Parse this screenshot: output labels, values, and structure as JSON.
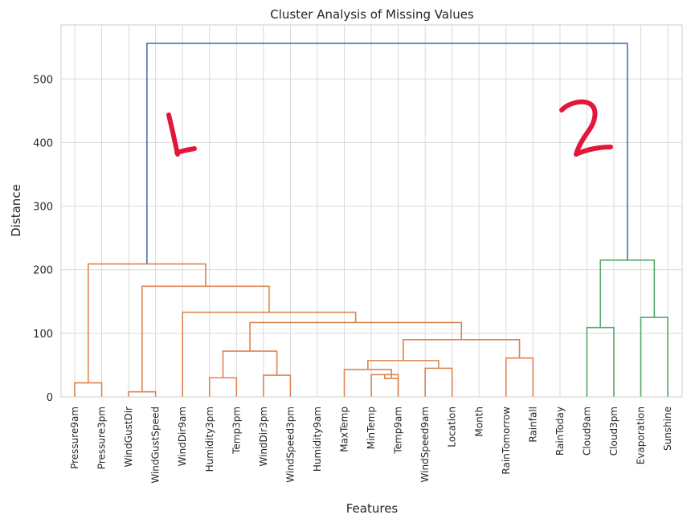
{
  "chart_data": {
    "type": "dendrogram",
    "title": "Cluster Analysis of Missing Values",
    "xlabel": "Features",
    "ylabel": "Distance",
    "ylim": [
      0,
      585
    ],
    "yticks": [
      0,
      100,
      200,
      300,
      400,
      500
    ],
    "grid": true,
    "leaves": [
      "Pressure9am",
      "Pressure3pm",
      "WindGustDir",
      "WindGustSpeed",
      "WindDir9am",
      "Humidity3pm",
      "Temp3pm",
      "WindDir3pm",
      "WindSpeed3pm",
      "Humidity9am",
      "MaxTemp",
      "MinTemp",
      "Temp9am",
      "WindSpeed9am",
      "Location",
      "Month",
      "RainTomorrow",
      "Rainfall",
      "RainToday",
      "Cloud9am",
      "Cloud3pm",
      "Evaporation",
      "Sunshine"
    ],
    "colors": {
      "cluster1": "#dd8452",
      "cluster2": "#55a868",
      "root": "#4c72b0"
    },
    "merges": [
      {
        "a": 0,
        "b": 1,
        "h": 22,
        "color": "cluster1"
      },
      {
        "a": 2,
        "b": 3,
        "h": 8,
        "color": "cluster1"
      },
      {
        "a": 5,
        "b": 6,
        "h": 30,
        "color": "cluster1"
      },
      {
        "a": 7,
        "b": 8,
        "h": 34,
        "color": "cluster1"
      },
      {
        "a": 11,
        "b": 12,
        "h": 35,
        "color": "cluster1"
      },
      {
        "a": 11.5,
        "b": 12,
        "h": 29,
        "color": "cluster1"
      },
      {
        "a": 10,
        "b": 11.75,
        "h": 43,
        "color": "cluster1"
      },
      {
        "a": 13,
        "b": 14,
        "h": 45,
        "color": "cluster1"
      },
      {
        "a": 10.875,
        "b": 13.5,
        "h": 57,
        "color": "cluster1"
      },
      {
        "a": 16,
        "b": 17,
        "h": 61,
        "color": "cluster1"
      },
      {
        "a": 12.1875,
        "b": 16.5,
        "h": 90,
        "color": "cluster1"
      },
      {
        "a": 5.5,
        "b": 7.5,
        "h": 72,
        "color": "cluster1"
      },
      {
        "a": 6.5,
        "b": 14.34375,
        "h": 117,
        "color": "cluster1"
      },
      {
        "a": 4,
        "b": 10.421875,
        "h": 133,
        "color": "cluster1"
      },
      {
        "a": 2.5,
        "b": 7.2109375,
        "h": 174,
        "color": "cluster1"
      },
      {
        "a": 0.5,
        "b": 4.85546875,
        "h": 209,
        "color": "cluster1"
      },
      {
        "a": 19,
        "b": 20,
        "h": 109,
        "color": "cluster2"
      },
      {
        "a": 21,
        "b": 22,
        "h": 125,
        "color": "cluster2"
      },
      {
        "a": 19.5,
        "b": 21.5,
        "h": 215,
        "color": "cluster2"
      },
      {
        "a": 2.677734375,
        "b": 20.5,
        "h": 556,
        "color": "root"
      }
    ],
    "annotations": [
      "1",
      "2"
    ]
  }
}
